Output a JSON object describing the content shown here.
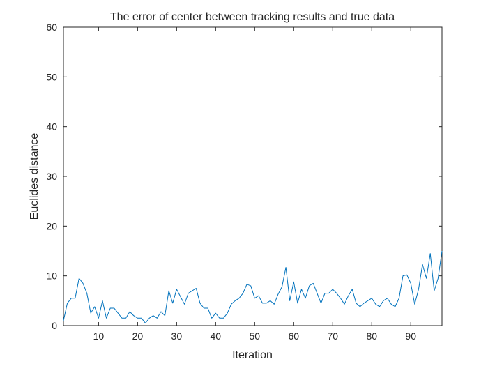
{
  "chart_data": {
    "type": "line",
    "title": "The error of center between tracking results and true data",
    "xlabel": "Iteration",
    "ylabel": "Euclides distance",
    "xlim": [
      1,
      98
    ],
    "ylim": [
      0,
      60
    ],
    "xticks": [
      10,
      20,
      30,
      40,
      50,
      60,
      70,
      80,
      90
    ],
    "yticks": [
      0,
      10,
      20,
      30,
      40,
      50,
      60
    ],
    "grid": false,
    "line_color": "#0072BD",
    "series": [
      {
        "x": [
          1,
          2,
          3,
          4,
          5,
          6,
          7,
          8,
          9,
          10,
          11,
          12,
          13,
          14,
          15,
          16,
          17,
          18,
          19,
          20,
          21,
          22,
          23,
          24,
          25,
          26,
          27,
          28,
          29,
          30,
          31,
          32,
          33,
          34,
          35,
          36,
          37,
          38,
          39,
          40,
          41,
          42,
          43,
          44,
          45,
          46,
          47,
          48,
          49,
          50,
          51,
          52,
          53,
          54,
          55,
          56,
          57,
          58,
          59,
          60,
          61,
          62,
          63,
          64,
          65,
          66,
          67,
          68,
          69,
          70,
          71,
          72,
          73,
          74,
          75,
          76,
          77,
          78,
          79,
          80,
          81,
          82,
          83,
          84,
          85,
          86,
          87,
          88,
          89,
          90,
          91,
          92,
          93,
          94,
          95,
          96,
          97,
          98
        ],
        "values": [
          1.0,
          4.5,
          5.5,
          5.5,
          9.5,
          8.5,
          6.5,
          2.5,
          3.8,
          1.5,
          5.0,
          1.5,
          3.5,
          3.5,
          2.5,
          1.5,
          1.5,
          2.8,
          2.0,
          1.5,
          1.5,
          0.5,
          1.5,
          2.0,
          1.5,
          2.8,
          2.0,
          7.0,
          4.5,
          7.3,
          5.8,
          4.3,
          6.5,
          7.0,
          7.5,
          4.5,
          3.5,
          3.5,
          1.5,
          2.5,
          1.5,
          1.5,
          2.5,
          4.3,
          5.0,
          5.5,
          6.5,
          8.3,
          8.0,
          5.5,
          6.0,
          4.5,
          4.5,
          5.0,
          4.3,
          6.3,
          7.8,
          11.7,
          5.0,
          8.8,
          4.5,
          7.3,
          5.5,
          8.0,
          8.5,
          6.5,
          4.5,
          6.5,
          6.5,
          7.3,
          6.5,
          5.5,
          4.3,
          6.0,
          7.3,
          4.5,
          3.8,
          4.5,
          5.0,
          5.5,
          4.3,
          3.8,
          5.0,
          5.5,
          4.3,
          3.8,
          5.5,
          10.0,
          10.2,
          8.5,
          4.3,
          7.3,
          12.3,
          9.5,
          14.5,
          7.0,
          9.5,
          15.0
        ]
      }
    ]
  }
}
